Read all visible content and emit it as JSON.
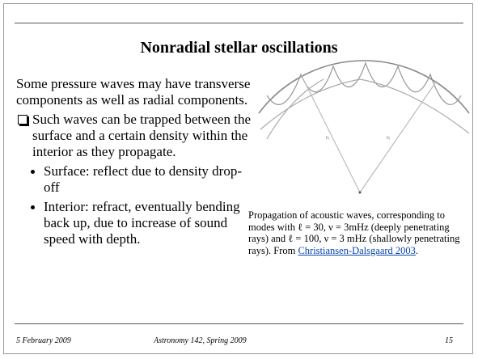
{
  "title": "Nonradial stellar oscillations",
  "body": {
    "paragraph": "Some pressure waves may have transverse components as well as radial components.",
    "bullet": "Such waves can be trapped between the surface and a certain density within the interior as they propagate.",
    "sub_bullets": [
      "Surface: reflect due to density drop-off",
      "Interior: refract, eventually bending back up, due to increase of sound speed with depth."
    ]
  },
  "figure": {
    "labels": [
      "rₜ",
      "rₜ"
    ]
  },
  "caption": {
    "text": "Propagation of acoustic waves, corresponding to modes with ℓ = 30, ν = 3mHz (deeply penetrating rays) and ℓ = 100, ν = 3 mHz (shallowly penetrating rays). From ",
    "link": "Christiansen-Dalsgaard 2003",
    "end": "."
  },
  "footer": {
    "date": "5 February 2009",
    "course": "Astronomy 142, Spring 2009",
    "page": "15"
  }
}
